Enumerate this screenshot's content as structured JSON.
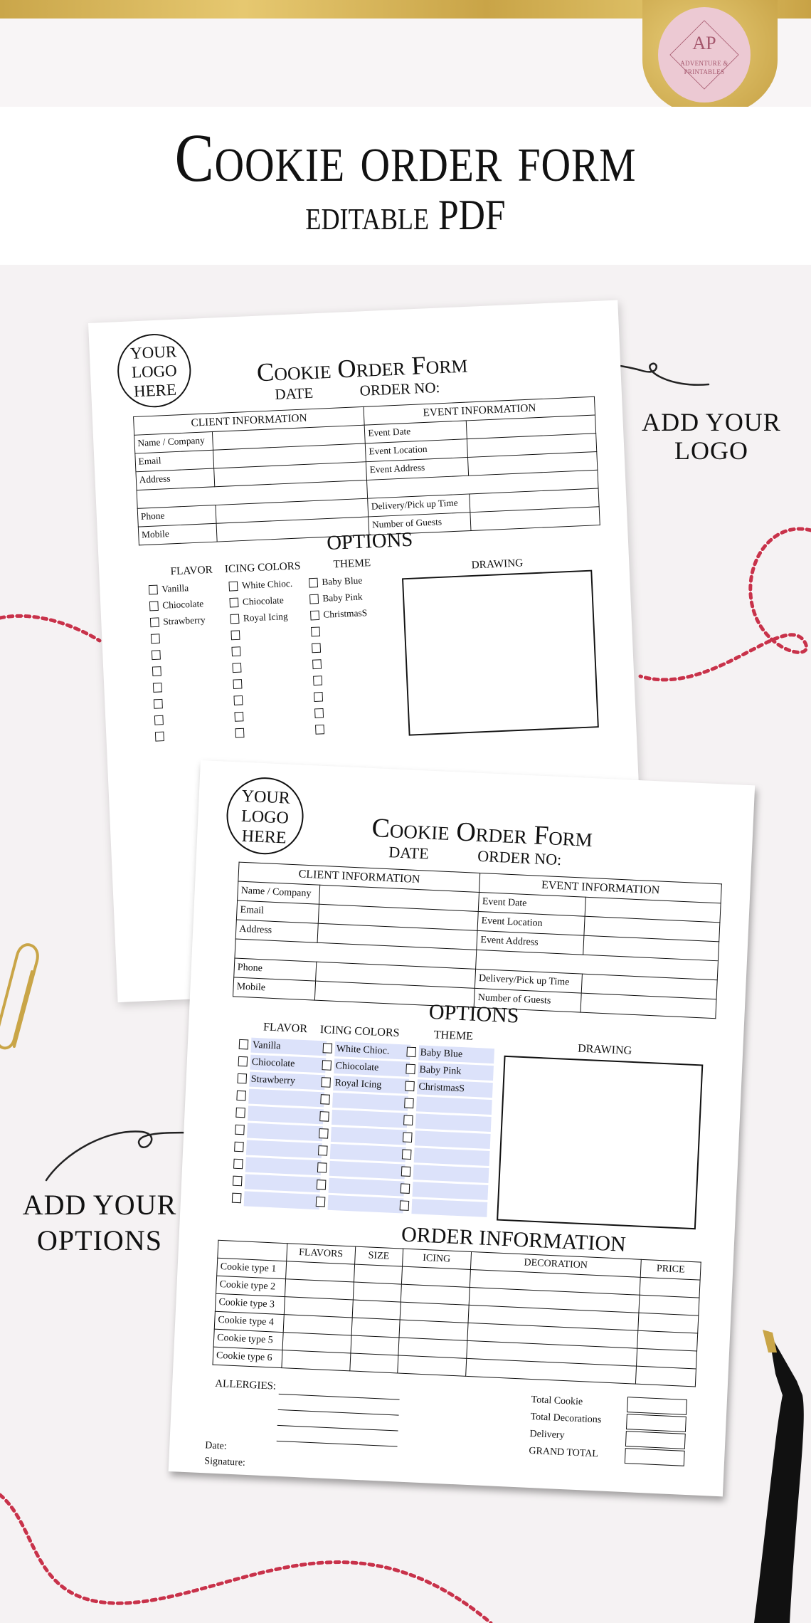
{
  "header": {
    "title": "Cookie order form",
    "subtitle": "editable PDF"
  },
  "brand_logo": {
    "monogram": "AP",
    "name_line1": "ADVENTURE &",
    "name_line2": "PRINTABLES"
  },
  "annotations": {
    "logo": [
      "ADD YOUR",
      "LOGO"
    ],
    "options": [
      "ADD YOUR",
      "OPTIONS"
    ]
  },
  "colors": {
    "gold": "#d4b25a",
    "badge_pink": "#ecc9d3",
    "field_blue": "#dce2fa",
    "twine_red": "#c8324a",
    "background": "#f5f2f3"
  },
  "form": {
    "logo_placeholder": [
      "YOUR",
      "LOGO",
      "HERE"
    ],
    "title": "Cookie Order Form",
    "date_label": "DATE",
    "order_no_label": "ORDER NO:",
    "client_header": "CLIENT INFORMATION",
    "client_fields": [
      "Name / Company",
      "Email",
      "Address",
      "",
      "Phone",
      "Mobile"
    ],
    "event_header": "EVENT INFORMATION",
    "event_fields": [
      "Event Date",
      "Event Location",
      "Event Address",
      "",
      "Delivery/Pick up Time",
      "Number of Guests"
    ],
    "options_heading": "OPTIONS",
    "option_columns": [
      {
        "header": "FLAVOR",
        "items": [
          "Vanilla",
          "Chiocolate",
          "Strawberry",
          "",
          "",
          "",
          "",
          "",
          "",
          ""
        ]
      },
      {
        "header": "ICING COLORS",
        "items": [
          "White Chioc.",
          "Chiocolate",
          "Royal Icing",
          "",
          "",
          "",
          "",
          "",
          "",
          ""
        ]
      },
      {
        "header": "THEME",
        "items": [
          "Baby Blue",
          "Baby Pink",
          "ChristmasS",
          "",
          "",
          "",
          "",
          "",
          "",
          ""
        ]
      }
    ],
    "drawing_label": "DRAWING",
    "order_heading": "ORDER INFORMATION",
    "order_columns": [
      "",
      "FLAVORS",
      "SIZE",
      "ICING",
      "DECORATION",
      "PRICE"
    ],
    "order_rows": [
      "Cookie type 1",
      "Cookie type 2",
      "Cookie type 3",
      "Cookie type 4",
      "Cookie type 5",
      "Cookie type 6"
    ],
    "allergies_label": "ALLERGIES:",
    "totals": [
      "Total Cookie",
      "Total Decorations",
      "Delivery",
      "GRAND TOTAL"
    ],
    "date_footer": "Date:",
    "signature_label": "Signature:"
  }
}
